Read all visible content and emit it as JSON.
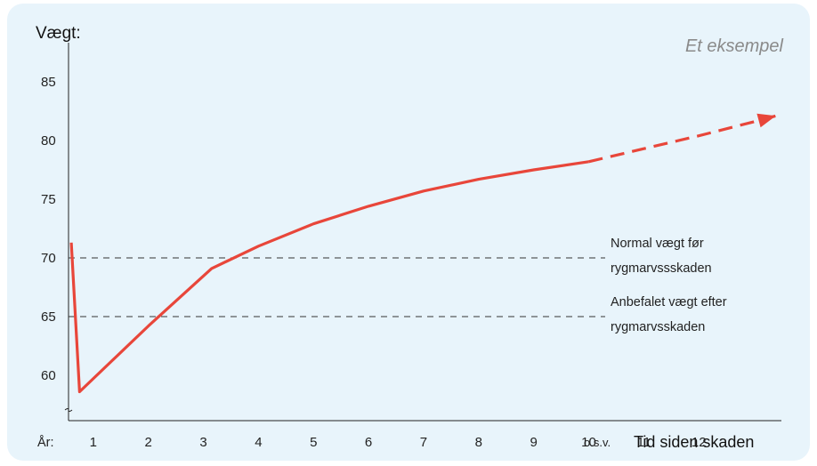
{
  "chart_data": {
    "type": "line",
    "ylabel": "Vægt:",
    "xlabel": "Tid siden skaden",
    "x_prefix": "År:",
    "x_suffix": "o.s.v.",
    "note": "Et eksempel",
    "ylim": [
      56.5,
      87
    ],
    "xlim": [
      0.55,
      13.5
    ],
    "y_ticks": [
      60,
      65,
      70,
      75,
      80,
      85
    ],
    "x_ticks": [
      1,
      2,
      3,
      4,
      5,
      6,
      7,
      8,
      9,
      10,
      11,
      12
    ],
    "series": [
      {
        "style": "solid",
        "color": "#e8463a",
        "points": [
          [
            0.6,
            71.3
          ],
          [
            0.75,
            58.6
          ],
          [
            2.0,
            64.2
          ],
          [
            3.15,
            69.1
          ],
          [
            4.0,
            71.0
          ],
          [
            5.0,
            72.9
          ],
          [
            6.0,
            74.4
          ],
          [
            7.0,
            75.7
          ],
          [
            8.0,
            76.7
          ],
          [
            9.0,
            77.5
          ],
          [
            10.0,
            78.2
          ]
        ]
      },
      {
        "style": "dashed",
        "color": "#e8463a",
        "points": [
          [
            10.0,
            78.2
          ],
          [
            11.0,
            79.3
          ],
          [
            12.0,
            80.4
          ],
          [
            13.0,
            81.6
          ],
          [
            13.4,
            82.1
          ]
        ],
        "arrow": true
      }
    ],
    "reference_lines": [
      {
        "y": 70,
        "label_line1": "Normal vægt før",
        "label_line2": "rygmarvssskaden"
      },
      {
        "y": 65,
        "label_line1": "Anbefalet vægt efter",
        "label_line2": "rygmarvsskaden"
      }
    ],
    "axis_break": true,
    "grid": false,
    "legend": "none"
  }
}
